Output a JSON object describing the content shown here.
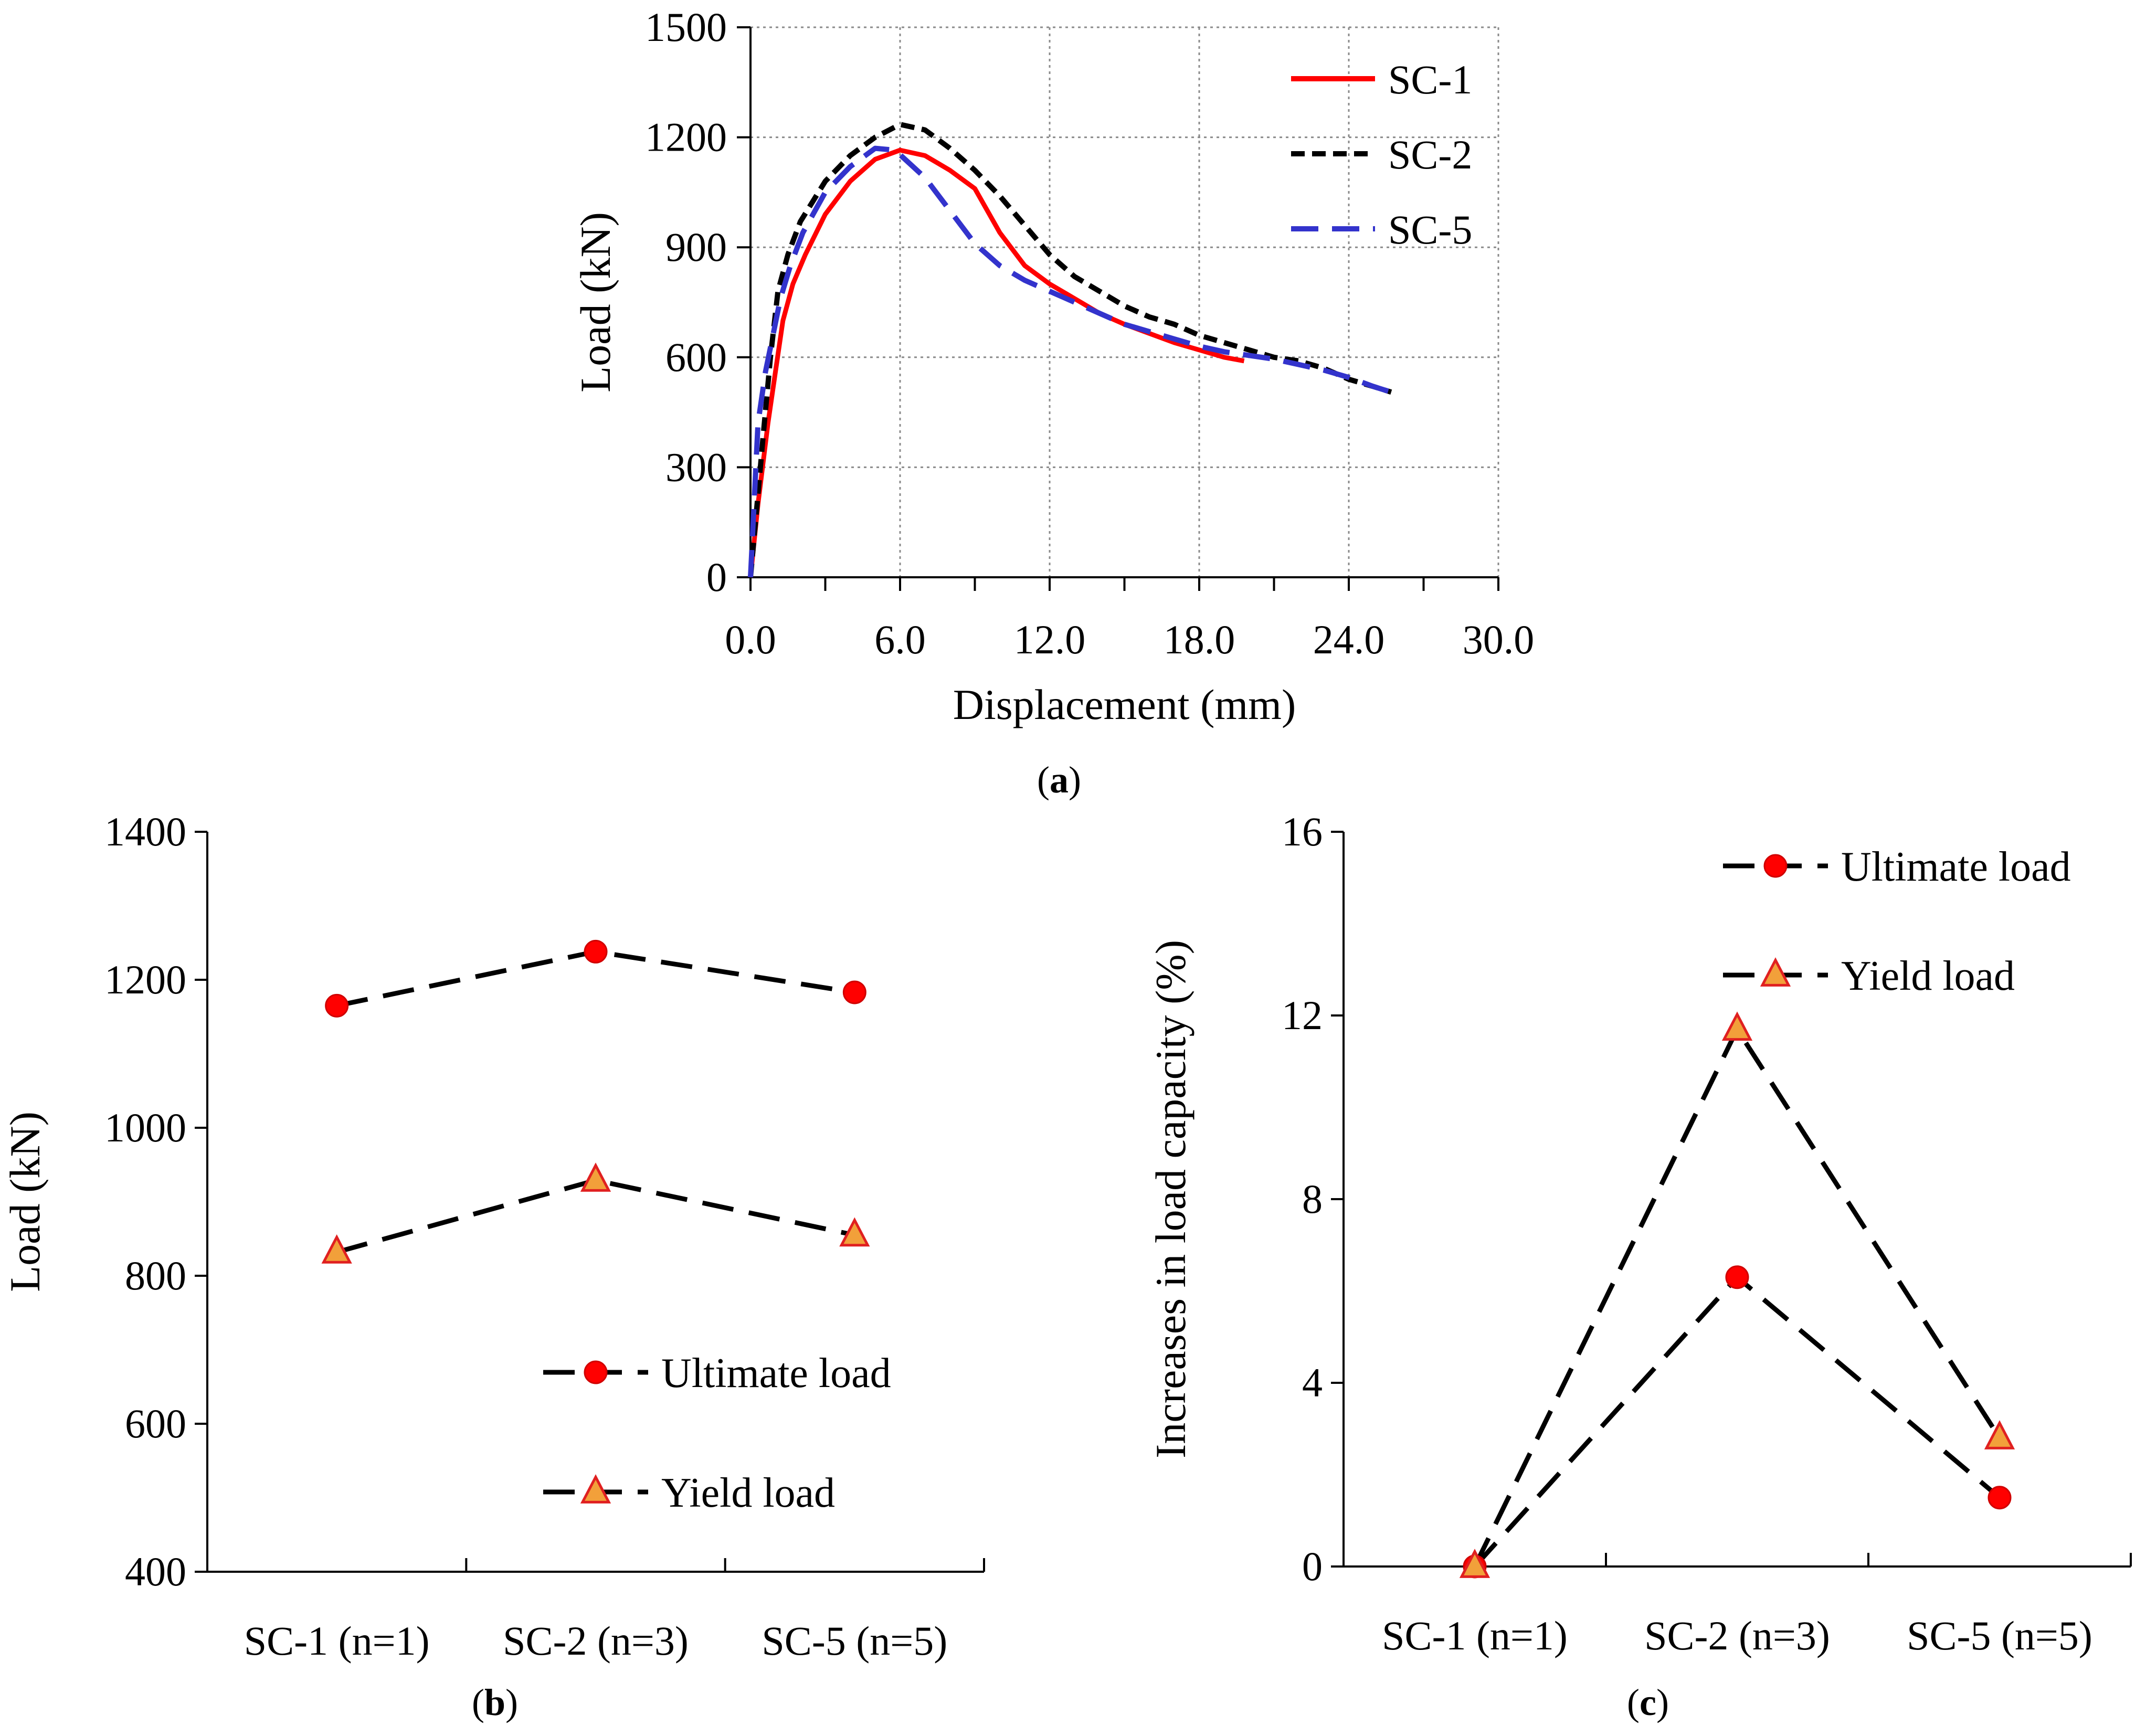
{
  "chart_data": [
    {
      "type": "line",
      "panel_label": "a",
      "xlabel": "Displacement (mm)",
      "ylabel": "Load (kN)",
      "xlim": [
        0,
        30
      ],
      "ylim": [
        0,
        1500
      ],
      "x_ticks": [
        "0.0",
        "6.0",
        "12.0",
        "18.0",
        "24.0",
        "30.0"
      ],
      "y_ticks": [
        "0",
        "300",
        "600",
        "900",
        "1200",
        "1500"
      ],
      "grid": true,
      "legend_position": "top-right",
      "series": [
        {
          "name": "SC-1",
          "color": "#ff0000",
          "dash": "solid",
          "x": [
            0,
            0.3,
            0.7,
            1.0,
            1.3,
            1.7,
            2.2,
            3.0,
            4.0,
            5.0,
            6.0,
            7.0,
            8.0,
            9.0,
            10.0,
            11.0,
            12.0,
            13.0,
            14.0,
            15.0,
            16.0,
            17.0,
            18.0,
            19.0,
            19.8
          ],
          "y": [
            0,
            200,
            420,
            560,
            700,
            800,
            880,
            990,
            1080,
            1140,
            1165,
            1150,
            1110,
            1060,
            940,
            850,
            800,
            760,
            720,
            690,
            665,
            640,
            620,
            600,
            590
          ]
        },
        {
          "name": "SC-2",
          "color": "#000000",
          "dash": "short-dash",
          "x": [
            0,
            0.2,
            0.5,
            0.8,
            1.1,
            1.5,
            2.0,
            3.0,
            4.0,
            5.0,
            6.0,
            7.0,
            8.0,
            9.0,
            10.0,
            11.0,
            12.0,
            13.0,
            14.0,
            15.0,
            16.0,
            17.0,
            18.0,
            19.0,
            20.0,
            21.0,
            22.0,
            23.0,
            24.0,
            25.0,
            25.7
          ],
          "y": [
            0,
            150,
            380,
            600,
            780,
            880,
            970,
            1080,
            1150,
            1200,
            1235,
            1220,
            1170,
            1110,
            1040,
            960,
            880,
            820,
            780,
            740,
            710,
            690,
            660,
            640,
            620,
            600,
            590,
            570,
            540,
            520,
            505
          ]
        },
        {
          "name": "SC-5",
          "color": "#3333cc",
          "dash": "long-dash",
          "x": [
            0,
            0.3,
            0.6,
            0.9,
            1.2,
            1.6,
            2.1,
            3.0,
            4.0,
            5.0,
            5.8,
            7.0,
            8.0,
            9.0,
            10.0,
            11.0,
            12.0,
            13.0,
            14.0,
            15.0,
            16.0,
            17.0,
            18.0,
            19.0,
            20.0,
            21.0,
            22.0,
            23.0,
            24.0,
            25.0,
            25.7
          ],
          "y": [
            0,
            420,
            560,
            660,
            760,
            850,
            940,
            1050,
            1120,
            1170,
            1165,
            1090,
            1000,
            910,
            850,
            810,
            780,
            750,
            720,
            690,
            670,
            650,
            630,
            615,
            605,
            595,
            580,
            565,
            545,
            520,
            505
          ]
        }
      ]
    },
    {
      "type": "line",
      "panel_label": "b",
      "ylabel": "Load (kN)",
      "ylim": [
        400,
        1400
      ],
      "y_ticks": [
        "400",
        "600",
        "800",
        "1000",
        "1200",
        "1400"
      ],
      "categories": [
        "SC-1 (n=1)",
        "SC-2 (n=3)",
        "SC-5 (n=5)"
      ],
      "grid": false,
      "legend_position": "bottom-right",
      "series": [
        {
          "name": "Ultimate load",
          "marker": "circle",
          "values": [
            1165,
            1238,
            1183
          ]
        },
        {
          "name": "Yield load",
          "marker": "triangle",
          "values": [
            832,
            929,
            855
          ]
        }
      ]
    },
    {
      "type": "line",
      "panel_label": "c",
      "ylabel": "Increases in load capacity (%)",
      "ylim": [
        0,
        16
      ],
      "y_ticks": [
        "0",
        "4",
        "8",
        "12",
        "16"
      ],
      "categories": [
        "SC-1 (n=1)",
        "SC-2 (n=3)",
        "SC-5 (n=5)"
      ],
      "grid": false,
      "legend_position": "top-right",
      "series": [
        {
          "name": "Ultimate load",
          "marker": "circle",
          "values": [
            0,
            6.3,
            1.5
          ]
        },
        {
          "name": "Yield load",
          "marker": "triangle",
          "values": [
            0,
            11.7,
            2.8
          ]
        }
      ]
    }
  ],
  "colors": {
    "marker_circle": "#ff0000",
    "marker_triangle_fill": "#f2a03a",
    "marker_triangle_stroke": "#e02020",
    "dashed_line": "#000000"
  }
}
